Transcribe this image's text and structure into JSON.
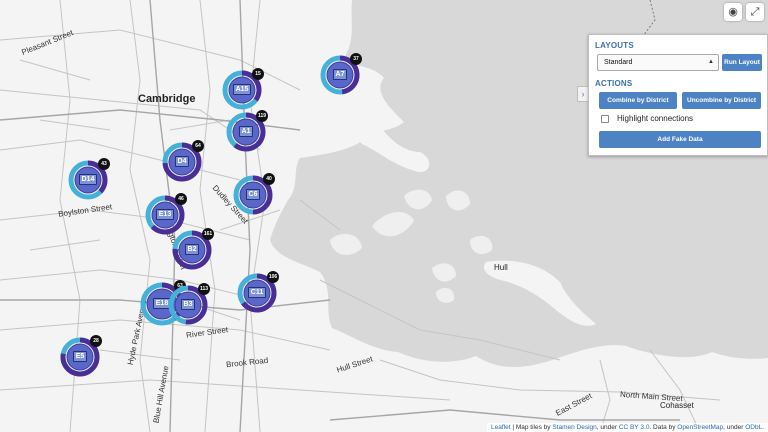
{
  "map": {
    "places": [
      {
        "name": "Cambridge",
        "size": 11,
        "bold": true
      },
      {
        "name": "Hull",
        "size": 8,
        "bold": false
      },
      {
        "name": "Cohasset",
        "size": 8,
        "bold": false
      }
    ],
    "streets": [
      "Pleasant Street",
      "Boylston Street",
      "Dudley Street",
      "Washington Street",
      "Hyde Park Avenue",
      "River Street",
      "Brook Road",
      "Blue Hill Avenue",
      "East Street",
      "North Main Street",
      "Hull Street"
    ]
  },
  "clusters": [
    {
      "label": "A15",
      "count": "15"
    },
    {
      "label": "A7",
      "count": "37"
    },
    {
      "label": "A1",
      "count": "119"
    },
    {
      "label": "D4",
      "count": "64"
    },
    {
      "label": "D14",
      "count": "43"
    },
    {
      "label": "C6",
      "count": "40"
    },
    {
      "label": "E13",
      "count": "46"
    },
    {
      "label": "B2",
      "count": "161"
    },
    {
      "label": "E18",
      "count": "63"
    },
    {
      "label": "B3",
      "count": "113"
    },
    {
      "label": "C11",
      "count": "106"
    },
    {
      "label": "E5",
      "count": "28"
    }
  ],
  "controls": {
    "globe_icon": "globe-icon",
    "fullscreen_icon": "expand-icon"
  },
  "panel": {
    "layouts_title": "LAYOUTS",
    "layout_select_value": "Standard",
    "run_layout_label": "Run Layout",
    "actions_title": "ACTIONS",
    "combine_label": "Combine by District",
    "uncombine_label": "Uncombine by District",
    "highlight_label": "Highlight connections",
    "fake_data_label": "Add Fake Data",
    "toggle_glyph": "›"
  },
  "attribution": {
    "leaflet": "Leaflet",
    "sep": " | Map tiles by ",
    "stamen": "Stamen Design",
    "under1": ", under ",
    "ccby": "CC BY 3.0",
    "data": ". Data by ",
    "osm": "OpenStreetMap",
    "under2": ", under ",
    "odbl": "ODbL",
    "end": "."
  },
  "colors": {
    "land": "#f2f2f2",
    "water": "#d9d9d9",
    "road": "#bdbdbd",
    "major_road": "#9a9a9a",
    "cluster_light": "#45b1d9",
    "cluster_dark": "#4a2e96",
    "accent": "#4d83c5"
  }
}
